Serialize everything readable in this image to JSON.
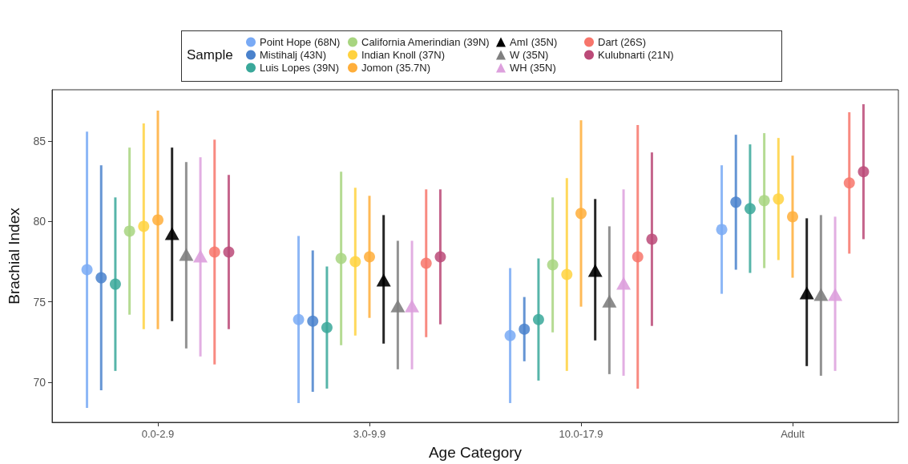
{
  "chart_data": {
    "type": "scatter",
    "xlabel": "Age Category",
    "ylabel": "Brachial Index",
    "legend_title": "Sample",
    "legend": "top",
    "categories": [
      "0.0-2.9",
      "3.0-9.9",
      "10.0-17.9",
      "Adult"
    ],
    "ylim": [
      67.5,
      88.2
    ],
    "yticks": [
      70,
      75,
      80,
      85
    ],
    "grid": false,
    "series": [
      {
        "name": "Point Hope (68N)",
        "color": "#79aaf5",
        "marker": "circle",
        "values": [
          77.0,
          73.9,
          72.9,
          79.5
        ],
        "errors": [
          [
            68.4,
            85.6
          ],
          [
            68.7,
            79.1
          ],
          [
            68.7,
            77.1
          ],
          [
            75.5,
            83.5
          ]
        ]
      },
      {
        "name": "Mistihalj (43N)",
        "color": "#4a82cc",
        "marker": "circle",
        "values": [
          76.5,
          73.8,
          73.3,
          81.2
        ],
        "errors": [
          [
            69.5,
            83.5
          ],
          [
            69.4,
            78.2
          ],
          [
            71.3,
            75.3
          ],
          [
            77.0,
            85.4
          ]
        ]
      },
      {
        "name": "Luis Lopes (39N)",
        "color": "#3aa89a",
        "marker": "circle",
        "values": [
          76.1,
          73.4,
          73.9,
          80.8
        ],
        "errors": [
          [
            70.7,
            81.5
          ],
          [
            69.6,
            77.2
          ],
          [
            70.1,
            77.7
          ],
          [
            76.8,
            84.8
          ]
        ]
      },
      {
        "name": "California Amerindian (39N)",
        "color": "#a8d580",
        "marker": "circle",
        "values": [
          79.4,
          77.7,
          77.3,
          81.3
        ],
        "errors": [
          [
            74.2,
            84.6
          ],
          [
            72.3,
            83.1
          ],
          [
            73.1,
            81.5
          ],
          [
            77.1,
            85.5
          ]
        ]
      },
      {
        "name": "Indian Knoll (37N)",
        "color": "#ffd23f",
        "marker": "circle",
        "values": [
          79.7,
          77.5,
          76.7,
          81.4
        ],
        "errors": [
          [
            73.3,
            86.1
          ],
          [
            72.9,
            82.1
          ],
          [
            70.7,
            82.7
          ],
          [
            77.6,
            85.2
          ]
        ]
      },
      {
        "name": "Jomon (35.7N)",
        "color": "#ffae3a",
        "marker": "circle",
        "values": [
          80.1,
          77.8,
          80.5,
          80.3
        ],
        "errors": [
          [
            73.3,
            86.9
          ],
          [
            74.0,
            81.6
          ],
          [
            74.7,
            86.3
          ],
          [
            76.5,
            84.1
          ]
        ]
      },
      {
        "name": "AmI (35N)",
        "color": "#000000",
        "marker": "triangle",
        "values": [
          79.2,
          76.3,
          76.9,
          75.5
        ],
        "errors": [
          [
            73.8,
            84.6
          ],
          [
            72.4,
            80.4
          ],
          [
            72.6,
            81.4
          ],
          [
            71.0,
            80.2
          ]
        ]
      },
      {
        "name": "W (35N)",
        "color": "#7f7f7f",
        "marker": "triangle",
        "values": [
          77.9,
          74.7,
          75.0,
          75.4
        ],
        "errors": [
          [
            72.1,
            83.7
          ],
          [
            70.8,
            78.8
          ],
          [
            70.5,
            79.7
          ],
          [
            70.4,
            80.4
          ]
        ]
      },
      {
        "name": "WH (35N)",
        "color": "#dda0dd",
        "marker": "triangle",
        "values": [
          77.8,
          74.7,
          76.1,
          75.4
        ],
        "errors": [
          [
            71.6,
            84.0
          ],
          [
            70.8,
            78.8
          ],
          [
            70.4,
            82.0
          ],
          [
            70.7,
            80.3
          ]
        ]
      },
      {
        "name": "Dart (26S)",
        "color": "#f7756b",
        "marker": "circle",
        "values": [
          78.1,
          77.4,
          77.8,
          82.4
        ],
        "errors": [
          [
            71.1,
            85.1
          ],
          [
            72.8,
            82.0
          ],
          [
            69.6,
            86.0
          ],
          [
            78.0,
            86.8
          ]
        ]
      },
      {
        "name": "Kulubnarti (21N)",
        "color": "#bb4a78",
        "marker": "circle",
        "values": [
          78.1,
          77.8,
          78.9,
          83.1
        ],
        "errors": [
          [
            73.3,
            82.9
          ],
          [
            73.6,
            82.0
          ],
          [
            73.5,
            84.3
          ],
          [
            78.9,
            87.3
          ]
        ]
      }
    ]
  }
}
